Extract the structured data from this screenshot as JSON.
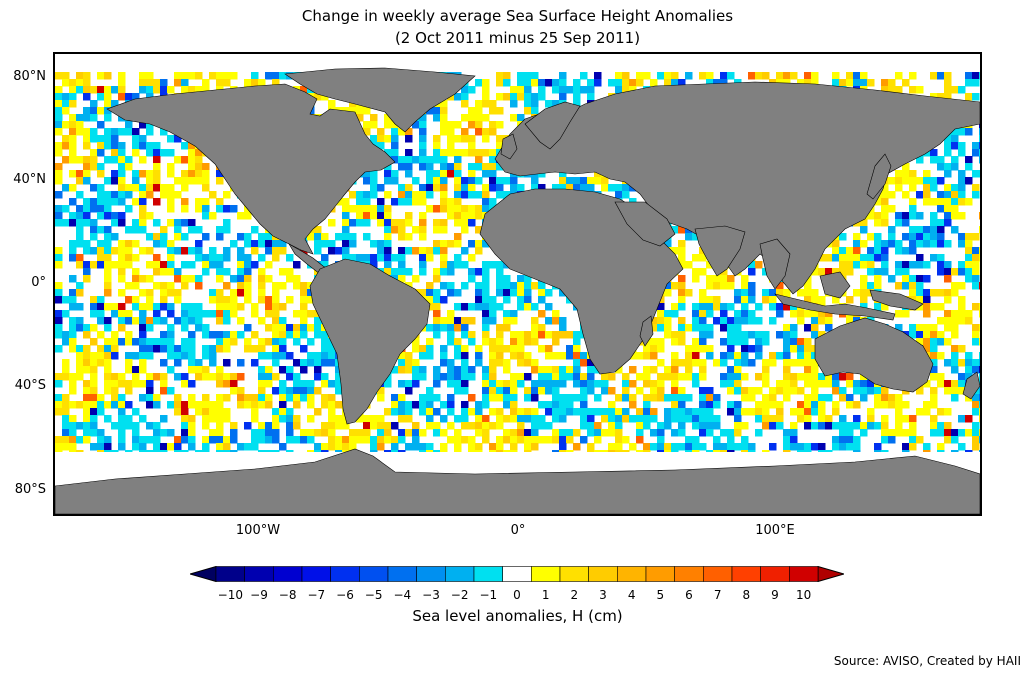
{
  "title": {
    "line1": "Change in weekly average Sea Surface Height Anomalies",
    "line2": "(2 Oct 2011 minus 25 Sep 2011)"
  },
  "axes": {
    "y_ticks": [
      "80°N",
      "40°N",
      "0°",
      "40°S",
      "80°S"
    ],
    "y_values": [
      80,
      40,
      0,
      -40,
      -80
    ],
    "x_ticks": [
      "100°W",
      "0°",
      "100°E"
    ],
    "x_values": [
      -100,
      0,
      100
    ],
    "lon_range": [
      -180,
      180
    ],
    "lat_range": [
      -90,
      90
    ]
  },
  "colorbar": {
    "labels": [
      "−10",
      "−9",
      "−8",
      "−7",
      "−6",
      "−5",
      "−4",
      "−3",
      "−2",
      "−1",
      "0",
      "1",
      "2",
      "3",
      "4",
      "5",
      "6",
      "7",
      "8",
      "9",
      "10"
    ],
    "colors": [
      "#00008a",
      "#0000b0",
      "#0000d0",
      "#0010e8",
      "#0030f0",
      "#0050f0",
      "#0070f0",
      "#0090f0",
      "#00b0f0",
      "#00e0f0",
      "#ffffff",
      "#ffff00",
      "#ffe000",
      "#ffcc00",
      "#ffb400",
      "#ff9c00",
      "#ff8000",
      "#ff6000",
      "#ff4000",
      "#f02000",
      "#d00000"
    ],
    "title": "Sea level anomalies, H (cm)"
  },
  "map": {
    "land_color": "#808080",
    "ocean_color": "#ffffff"
  },
  "source": "Source: AVISO, Created by HAII"
}
